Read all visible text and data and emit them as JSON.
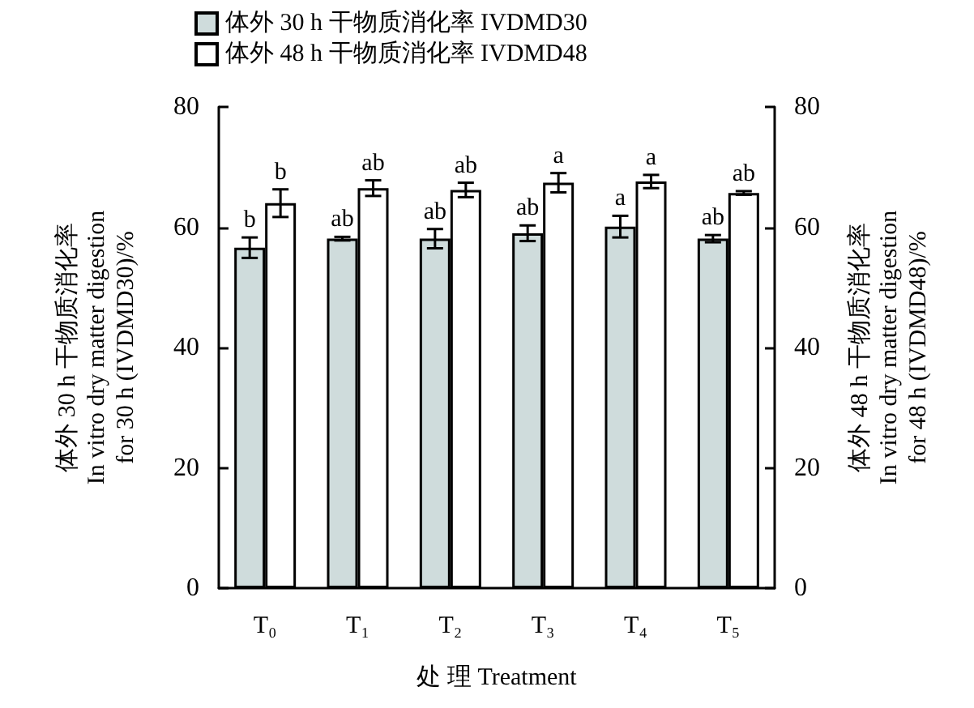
{
  "chart_data": {
    "type": "bar",
    "xlabel": "处 理 Treatment",
    "ylabel": "体外 30 h 干物质消化率\nIn vitro dry matter digestion\nfor 30 h (IVDMD30)/%",
    "y2label": "体外 48 h 干物质消化率\nIn vitro dry matter digestion\nfor 48 h (IVDMD48)/%",
    "categories": [
      "T₀",
      "T₁",
      "T₂",
      "T₃",
      "T₄",
      "T₅"
    ],
    "series": [
      {
        "name": "体外 30 h 干物质消化率 IVDMD30",
        "color": "#cfdcdc",
        "values": [
          56.6,
          58.1,
          58.1,
          59.0,
          60.1,
          58.1
        ],
        "errors": [
          1.7,
          0.3,
          1.6,
          1.3,
          1.8,
          0.6
        ]
      },
      {
        "name": "体外 48 h 干物质消化率 IVDMD48",
        "color": "#ffffff",
        "axis": "y2",
        "values": [
          64.0,
          66.5,
          66.2,
          67.4,
          67.6,
          65.7
        ],
        "errors": [
          2.3,
          1.3,
          1.2,
          1.6,
          1.1,
          0.3
        ]
      }
    ],
    "annotations": [
      {
        "text": "b",
        "x": "T₀",
        "y": 58.3
      },
      {
        "text": "b",
        "x": "T₀",
        "y": 66.3
      },
      {
        "text": "ab",
        "x": "T₁",
        "y": 58.4
      },
      {
        "text": "ab",
        "x": "T₁",
        "y": 67.8
      },
      {
        "text": "ab",
        "x": "T₂",
        "y": 59.7
      },
      {
        "text": "ab",
        "x": "T₂",
        "y": 67.4
      },
      {
        "text": "ab",
        "x": "T₃",
        "y": 60.3
      },
      {
        "text": "a",
        "x": "T₃",
        "y": 69.0
      },
      {
        "text": "a",
        "x": "T₄",
        "y": 61.9
      },
      {
        "text": "a",
        "x": "T₄",
        "y": 68.7
      },
      {
        "text": "ab",
        "x": "T₅",
        "y": 58.7
      },
      {
        "text": "ab",
        "x": "T₅",
        "y": 66.0
      }
    ],
    "ylim": [
      0,
      80
    ],
    "yticks": [
      0,
      20,
      40,
      60,
      80
    ],
    "y2lim": [
      0,
      80
    ],
    "y2ticks": [
      0,
      20,
      40,
      60,
      80
    ],
    "grid": false,
    "legend": "top left"
  }
}
